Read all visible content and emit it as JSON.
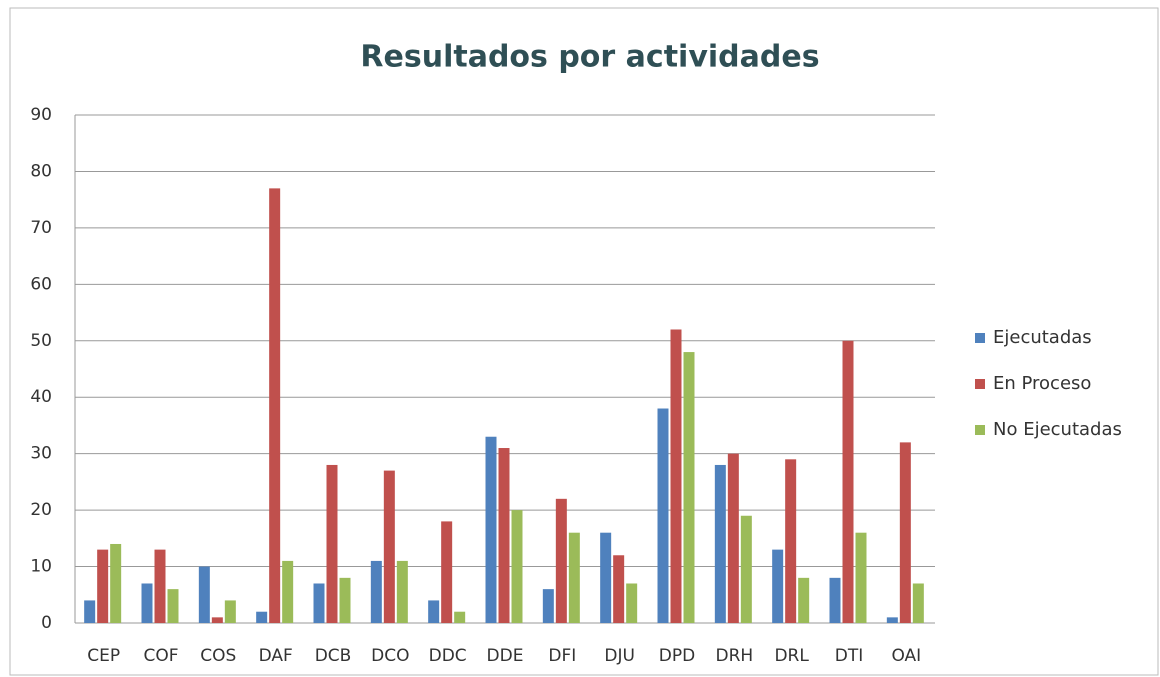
{
  "chart_data": {
    "type": "bar",
    "title": "Resultados por actividades",
    "categories": [
      "CEP",
      "COF",
      "COS",
      "DAF",
      "DCB",
      "DCO",
      "DDC",
      "DDE",
      "DFI",
      "DJU",
      "DPD",
      "DRH",
      "DRL",
      "DTI",
      "OAI"
    ],
    "series": [
      {
        "name": "Ejecutadas",
        "color": "#4f81bd",
        "values": [
          4,
          7,
          10,
          2,
          7,
          11,
          4,
          33,
          6,
          16,
          38,
          28,
          13,
          8,
          1
        ]
      },
      {
        "name": "En Proceso",
        "color": "#c0504d",
        "values": [
          13,
          13,
          1,
          77,
          28,
          27,
          18,
          31,
          22,
          12,
          52,
          30,
          29,
          50,
          32
        ]
      },
      {
        "name": "No Ejecutadas",
        "color": "#9bbb59",
        "values": [
          14,
          6,
          4,
          11,
          8,
          11,
          2,
          20,
          16,
          7,
          48,
          19,
          8,
          16,
          7
        ]
      }
    ],
    "ylim": [
      0,
      90
    ],
    "yticks": [
      0,
      10,
      20,
      30,
      40,
      50,
      60,
      70,
      80,
      90
    ],
    "grid": true,
    "legend": "right"
  }
}
